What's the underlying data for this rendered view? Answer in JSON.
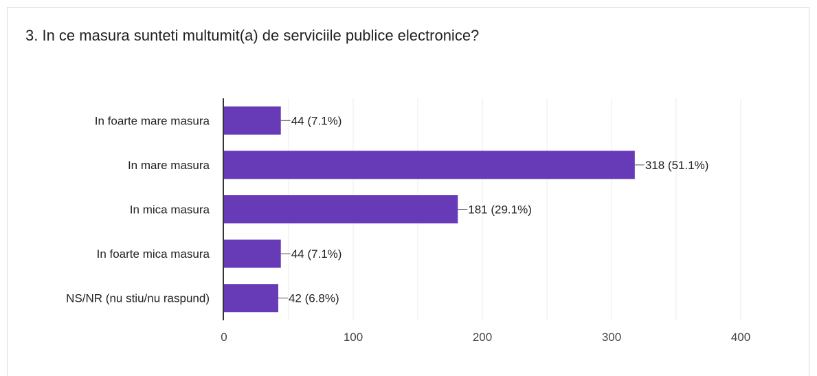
{
  "question": {
    "title": "3. In ce masura sunteti multumit(a) de serviciile publice electronice?"
  },
  "chart_data": {
    "type": "bar",
    "orientation": "horizontal",
    "categories": [
      "In foarte mare masura",
      "In mare masura",
      "In mica masura",
      "In foarte mica masura",
      "NS/NR (nu stiu/nu raspund)"
    ],
    "values": [
      44,
      318,
      181,
      44,
      42
    ],
    "percents": [
      "7.1%",
      "51.1%",
      "29.1%",
      "7.1%",
      "6.8%"
    ],
    "data_labels": [
      "44 (7.1%)",
      "318 (51.1%)",
      "181 (29.1%)",
      "44 (7.1%)",
      "42 (6.8%)"
    ],
    "xlim": [
      0,
      400
    ],
    "xticks": [
      0,
      100,
      200,
      300,
      400
    ],
    "grid": true,
    "legend": "none",
    "colors": {
      "bar": "#673ab7",
      "grid": "#ebebeb",
      "axis": "#333333",
      "text": "#222222",
      "tick_text": "#444444"
    }
  }
}
